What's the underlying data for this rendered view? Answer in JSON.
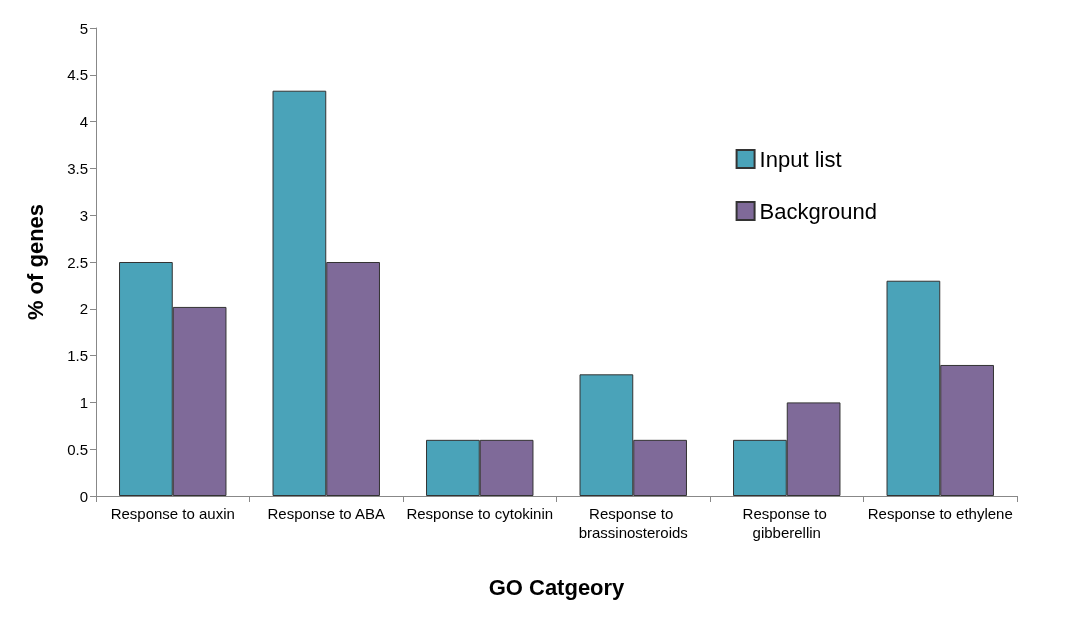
{
  "chart_data": {
    "type": "bar",
    "xlabel": "GO Catgeory",
    "ylabel": "% of genes",
    "categories": [
      "Response to auxin",
      "Response to ABA",
      "Response to cytokinin",
      "Response to brassinosteroids",
      "Response to gibberellin",
      "Response to ethylene"
    ],
    "series": [
      {
        "name": "Input list",
        "color": "#4aa3b9",
        "values": [
          2.5,
          4.33,
          0.6,
          1.3,
          0.6,
          2.3
        ]
      },
      {
        "name": "Background",
        "color": "#7f6a99",
        "values": [
          2.02,
          2.5,
          0.6,
          0.6,
          1.0,
          1.4
        ]
      }
    ],
    "ylim": [
      0,
      5
    ],
    "yticks": [
      0,
      0.5,
      1,
      1.5,
      2,
      2.5,
      3,
      3.5,
      4,
      4.5,
      5
    ],
    "grid": false,
    "legend": "top right"
  }
}
